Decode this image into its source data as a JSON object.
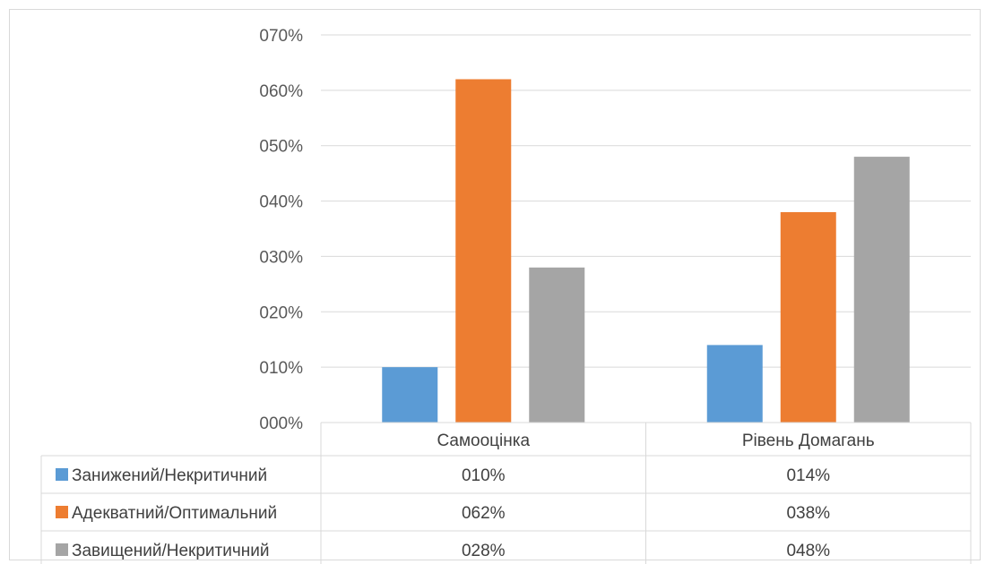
{
  "chart_data": {
    "type": "bar",
    "categories": [
      "Самооцінка",
      "Рівень Домагань"
    ],
    "series": [
      {
        "name": "Занижений/Некритичний",
        "color": "#5b9bd5",
        "values": [
          0.1,
          0.14
        ],
        "labels": [
          "010%",
          "014%"
        ]
      },
      {
        "name": "Адекватний/Оптимальний",
        "color": "#ed7d31",
        "values": [
          0.62,
          0.38
        ],
        "labels": [
          "062%",
          "038%"
        ]
      },
      {
        "name": "Завищений/Некритичний",
        "color": "#a5a5a5",
        "values": [
          0.28,
          0.48
        ],
        "labels": [
          "028%",
          "048%"
        ]
      }
    ],
    "ylim": [
      0,
      0.7
    ],
    "yticks": [
      {
        "value": 0.0,
        "label": "000%"
      },
      {
        "value": 0.1,
        "label": "010%"
      },
      {
        "value": 0.2,
        "label": "020%"
      },
      {
        "value": 0.3,
        "label": "030%"
      },
      {
        "value": 0.4,
        "label": "040%"
      },
      {
        "value": 0.5,
        "label": "050%"
      },
      {
        "value": 0.6,
        "label": "060%"
      },
      {
        "value": 0.7,
        "label": "070%"
      }
    ],
    "grid": true,
    "legend": "data-table"
  }
}
